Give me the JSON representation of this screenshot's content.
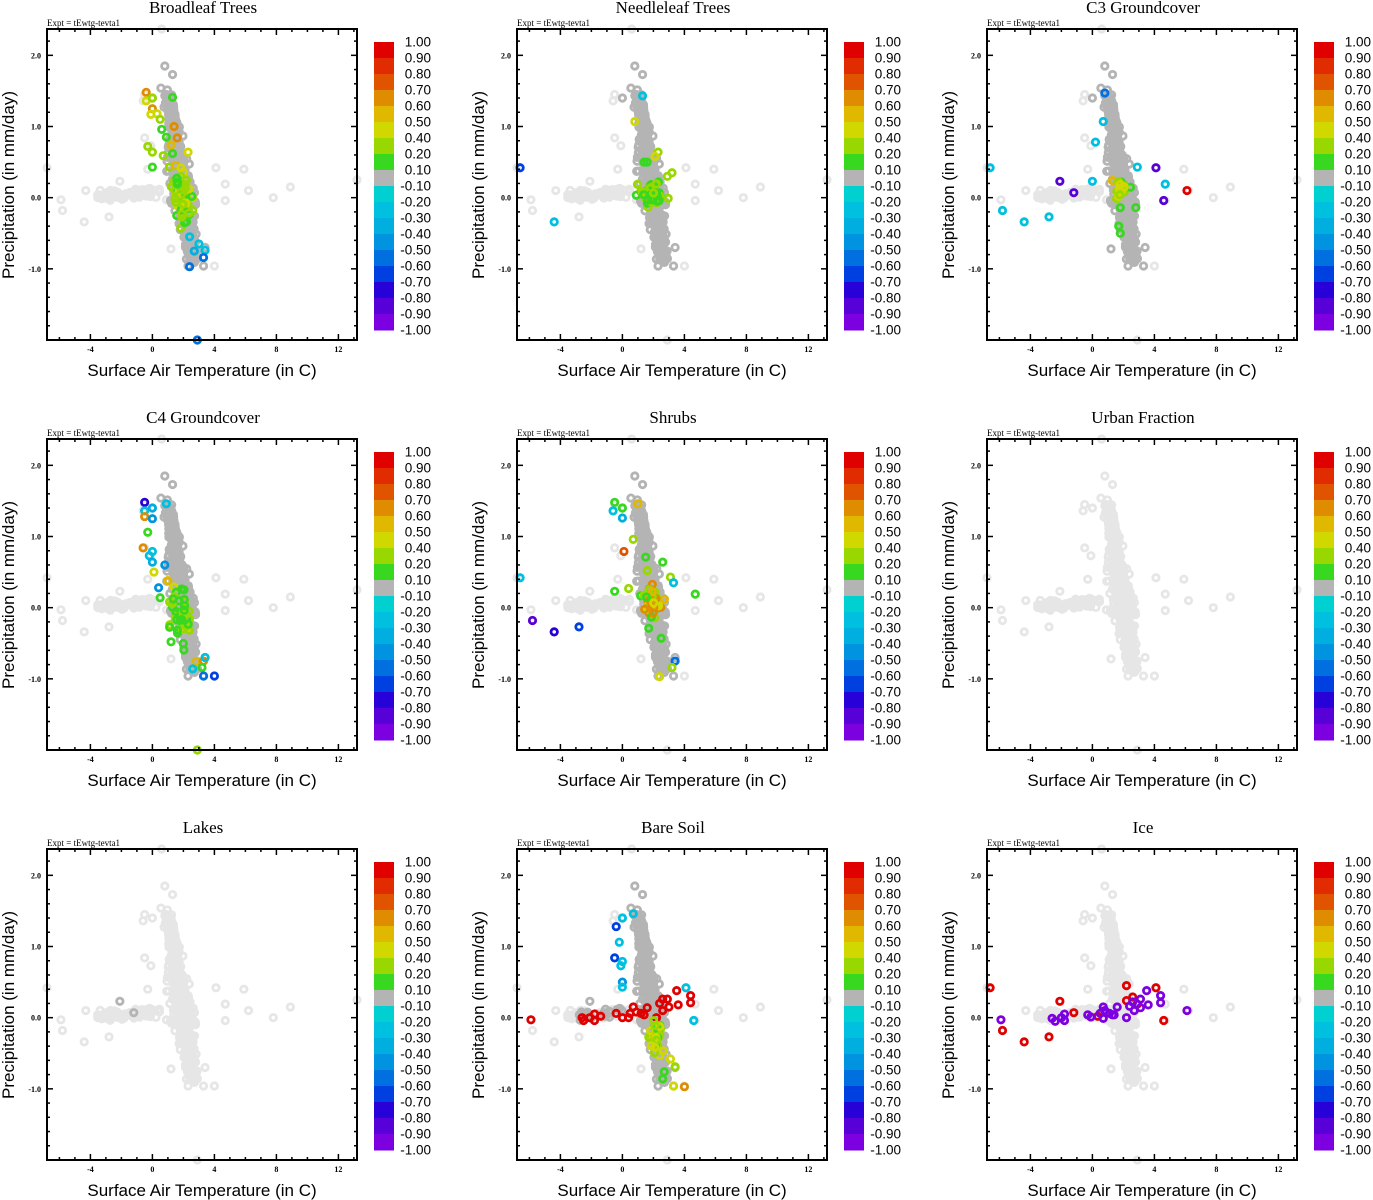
{
  "figure": {
    "experiment_label": "Expt = tEwtg-tevta1",
    "xlabel": "Surface Air Temperature (in C)",
    "ylabel": "Precipitation (in mm/day)"
  },
  "colorbar": {
    "labels": [
      "1.00",
      "0.90",
      "0.80",
      "0.70",
      "0.60",
      "0.50",
      "0.40",
      "0.20",
      "0.10",
      "-0.10",
      "-0.20",
      "-0.30",
      "-0.40",
      "-0.50",
      "-0.60",
      "-0.70",
      "-0.80",
      "-0.90",
      "-1.00"
    ],
    "colors": [
      "#e00000",
      "#e02c00",
      "#e05400",
      "#e08c00",
      "#e0b800",
      "#d0d800",
      "#98d800",
      "#38d820",
      "#b4b4b4",
      "#00d0d0",
      "#00c0e0",
      "#00aee0",
      "#0094e0",
      "#0070e0",
      "#0040e0",
      "#2800d8",
      "#5800d8",
      "#7c00e0"
    ],
    "neutral_color": "#b4b4b4",
    "background_color": "#e6e6e6"
  },
  "chart_data": [
    {
      "type": "scatter",
      "title": "Broadleaf Trees",
      "xlabel": "Surface Air Temperature (in C)",
      "ylabel": "Precipitation (in mm/day)",
      "xlim": [
        -6.8,
        13.2
      ],
      "ylim": [
        -2.0,
        2.37
      ],
      "xticks": [
        -4,
        0,
        4,
        8,
        12
      ],
      "yticks": [
        2.0,
        1.0,
        0.0,
        -1.0
      ],
      "xtick_labels": [
        "-4",
        "0",
        "4",
        "8",
        "12"
      ],
      "ytick_labels": [
        "2.0",
        "1.0",
        "0.0",
        "-1.0"
      ],
      "colorbar_range": [
        -1.0,
        1.0
      ],
      "highlight_cluster": "main",
      "highlight_mode": "broadleaf"
    },
    {
      "type": "scatter",
      "title": "Needleleaf Trees",
      "xlabel": "Surface Air Temperature (in C)",
      "ylabel": "Precipitation (in mm/day)",
      "xlim": [
        -6.8,
        13.2
      ],
      "ylim": [
        -2.0,
        2.37
      ],
      "xticks": [
        -4,
        0,
        4,
        8,
        12
      ],
      "yticks": [
        2.0,
        1.0,
        0.0,
        -1.0
      ],
      "xtick_labels": [
        "-4",
        "0",
        "4",
        "8",
        "12"
      ],
      "ytick_labels": [
        "2.0",
        "1.0",
        "0.0",
        "-1.0"
      ],
      "colorbar_range": [
        -1.0,
        1.0
      ],
      "highlight_mode": "needleleaf"
    },
    {
      "type": "scatter",
      "title": "C3 Groundcover",
      "xlabel": "Surface Air Temperature (in C)",
      "ylabel": "Precipitation (in mm/day)",
      "xlim": [
        -6.8,
        13.2
      ],
      "ylim": [
        -2.0,
        2.37
      ],
      "xticks": [
        -4,
        0,
        4,
        8,
        12
      ],
      "yticks": [
        2.0,
        1.0,
        0.0,
        -1.0
      ],
      "xtick_labels": [
        "-4",
        "0",
        "4",
        "8",
        "12"
      ],
      "ytick_labels": [
        "2.0",
        "1.0",
        "0.0",
        "-1.0"
      ],
      "colorbar_range": [
        -1.0,
        1.0
      ],
      "highlight_mode": "c3"
    },
    {
      "type": "scatter",
      "title": "C4 Groundcover",
      "xlabel": "Surface Air Temperature (in C)",
      "ylabel": "Precipitation (in mm/day)",
      "xlim": [
        -6.8,
        13.2
      ],
      "ylim": [
        -2.0,
        2.37
      ],
      "xticks": [
        -4,
        0,
        4,
        8,
        12
      ],
      "yticks": [
        2.0,
        1.0,
        0.0,
        -1.0
      ],
      "xtick_labels": [
        "-4",
        "0",
        "4",
        "8",
        "12"
      ],
      "ytick_labels": [
        "2.0",
        "1.0",
        "0.0",
        "-1.0"
      ],
      "colorbar_range": [
        -1.0,
        1.0
      ],
      "highlight_mode": "c4"
    },
    {
      "type": "scatter",
      "title": "Shrubs",
      "xlabel": "Surface Air Temperature (in C)",
      "ylabel": "Precipitation (in mm/day)",
      "xlim": [
        -6.8,
        13.2
      ],
      "ylim": [
        -2.0,
        2.37
      ],
      "xticks": [
        -4,
        0,
        4,
        8,
        12
      ],
      "yticks": [
        2.0,
        1.0,
        0.0,
        -1.0
      ],
      "xtick_labels": [
        "-4",
        "0",
        "4",
        "8",
        "12"
      ],
      "ytick_labels": [
        "2.0",
        "1.0",
        "0.0",
        "-1.0"
      ],
      "colorbar_range": [
        -1.0,
        1.0
      ],
      "highlight_mode": "shrubs"
    },
    {
      "type": "scatter",
      "title": "Urban Fraction",
      "xlabel": "Surface Air Temperature (in C)",
      "ylabel": "Precipitation (in mm/day)",
      "xlim": [
        -6.8,
        13.2
      ],
      "ylim": [
        -2.0,
        2.37
      ],
      "xticks": [
        -4,
        0,
        4,
        8,
        12
      ],
      "yticks": [
        2.0,
        1.0,
        0.0,
        -1.0
      ],
      "xtick_labels": [
        "-4",
        "0",
        "4",
        "8",
        "12"
      ],
      "ytick_labels": [
        "2.0",
        "1.0",
        "0.0",
        "-1.0"
      ],
      "colorbar_range": [
        -1.0,
        1.0
      ],
      "highlight_mode": "none"
    },
    {
      "type": "scatter",
      "title": "Lakes",
      "xlabel": "Surface Air Temperature (in C)",
      "ylabel": "Precipitation (in mm/day)",
      "xlim": [
        -6.8,
        13.2
      ],
      "ylim": [
        -2.0,
        2.37
      ],
      "xticks": [
        -4,
        0,
        4,
        8,
        12
      ],
      "yticks": [
        2.0,
        1.0,
        0.0,
        -1.0
      ],
      "xtick_labels": [
        "-4",
        "0",
        "4",
        "8",
        "12"
      ],
      "ytick_labels": [
        "2.0",
        "1.0",
        "0.0",
        "-1.0"
      ],
      "colorbar_range": [
        -1.0,
        1.0
      ],
      "highlight_mode": "lakes",
      "points": [
        {
          "x": -2.1,
          "y": 0.23,
          "v": -0.05
        },
        {
          "x": -1.2,
          "y": 0.07,
          "v": -0.05
        }
      ]
    },
    {
      "type": "scatter",
      "title": "Bare Soil",
      "xlabel": "Surface Air Temperature (in C)",
      "ylabel": "Precipitation (in mm/day)",
      "xlim": [
        -6.8,
        13.2
      ],
      "ylim": [
        -2.0,
        2.37
      ],
      "xticks": [
        -4,
        0,
        4,
        8,
        12
      ],
      "yticks": [
        2.0,
        1.0,
        0.0,
        -1.0
      ],
      "xtick_labels": [
        "-4",
        "0",
        "4",
        "8",
        "12"
      ],
      "ytick_labels": [
        "2.0",
        "1.0",
        "0.0",
        "-1.0"
      ],
      "colorbar_range": [
        -1.0,
        1.0
      ],
      "highlight_mode": "baresoil"
    },
    {
      "type": "scatter",
      "title": "Ice",
      "xlabel": "Surface Air Temperature (in C)",
      "ylabel": "Precipitation (in mm/day)",
      "xlim": [
        -6.8,
        13.2
      ],
      "ylim": [
        -2.0,
        2.37
      ],
      "xticks": [
        -4,
        0,
        4,
        8,
        12
      ],
      "yticks": [
        2.0,
        1.0,
        0.0,
        -1.0
      ],
      "xtick_labels": [
        "-4",
        "0",
        "4",
        "8",
        "12"
      ],
      "ytick_labels": [
        "2.0",
        "1.0",
        "0.0",
        "-1.0"
      ],
      "colorbar_range": [
        -1.0,
        1.0
      ],
      "highlight_mode": "ice",
      "points": [
        {
          "x": -6.6,
          "y": 0.42,
          "v": 0.95
        },
        {
          "x": -5.8,
          "y": -0.18,
          "v": 0.95
        },
        {
          "x": -4.4,
          "y": -0.34,
          "v": 0.95
        },
        {
          "x": -2.8,
          "y": -0.27,
          "v": 0.95
        },
        {
          "x": -2.1,
          "y": 0.23,
          "v": 0.95
        },
        {
          "x": -1.2,
          "y": 0.07,
          "v": 0.95
        },
        {
          "x": 0.35,
          "y": 0.02,
          "v": 0.95
        },
        {
          "x": 2.2,
          "y": 0.45,
          "v": 0.95
        },
        {
          "x": 2.2,
          "y": 0.24,
          "v": 0.95
        },
        {
          "x": 2.6,
          "y": 0.29,
          "v": 0.95
        },
        {
          "x": 2.9,
          "y": 0.19,
          "v": 0.95
        },
        {
          "x": 4.1,
          "y": 0.42,
          "v": 0.95
        },
        {
          "x": 4.6,
          "y": -0.04,
          "v": 0.95
        },
        {
          "x": -5.9,
          "y": -0.03,
          "v": -0.95
        },
        {
          "x": -2.6,
          "y": -0.01,
          "v": -0.95
        },
        {
          "x": -2.4,
          "y": -0.05,
          "v": -0.95
        },
        {
          "x": -2.0,
          "y": 0.0,
          "v": -0.95
        },
        {
          "x": -1.8,
          "y": 0.05,
          "v": -0.95
        },
        {
          "x": -1.8,
          "y": -0.04,
          "v": -0.95
        },
        {
          "x": -0.3,
          "y": 0.04,
          "v": -0.95
        },
        {
          "x": -0.1,
          "y": 0.01,
          "v": -0.95
        },
        {
          "x": 0.5,
          "y": 0.06,
          "v": -0.95
        },
        {
          "x": 0.7,
          "y": 0.15,
          "v": -0.95
        },
        {
          "x": 0.8,
          "y": 0.1,
          "v": -0.95
        },
        {
          "x": 0.7,
          "y": -0.01,
          "v": -0.95
        },
        {
          "x": 1.1,
          "y": 0.06,
          "v": -0.95
        },
        {
          "x": 1.3,
          "y": 0.04,
          "v": -0.95
        },
        {
          "x": 1.6,
          "y": 0.15,
          "v": -0.95
        },
        {
          "x": 1.4,
          "y": 0.04,
          "v": -0.95
        },
        {
          "x": 2.2,
          "y": 0.0,
          "v": -0.95
        },
        {
          "x": 2.4,
          "y": 0.16,
          "v": -0.95
        },
        {
          "x": 2.6,
          "y": 0.22,
          "v": -0.95
        },
        {
          "x": 2.7,
          "y": 0.1,
          "v": -0.95
        },
        {
          "x": 3.1,
          "y": 0.26,
          "v": -0.95
        },
        {
          "x": 3.1,
          "y": 0.14,
          "v": -0.95
        },
        {
          "x": 3.5,
          "y": 0.38,
          "v": -0.95
        },
        {
          "x": 3.6,
          "y": 0.18,
          "v": -0.95
        },
        {
          "x": 4.4,
          "y": 0.31,
          "v": -0.95
        },
        {
          "x": 4.4,
          "y": 0.21,
          "v": -0.95
        },
        {
          "x": 6.1,
          "y": 0.1,
          "v": -0.95
        }
      ]
    }
  ]
}
